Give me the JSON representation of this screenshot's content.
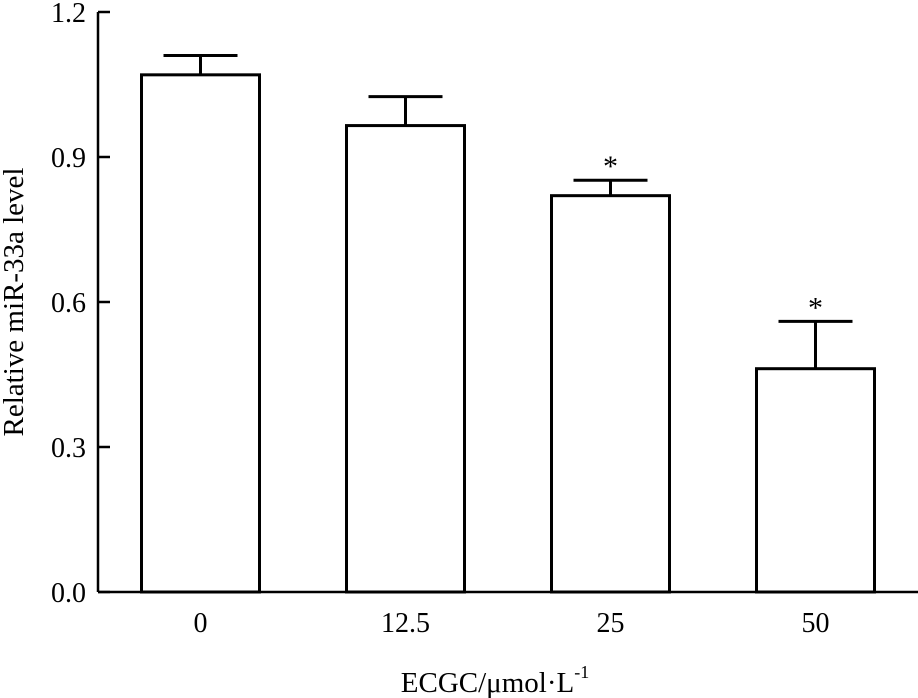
{
  "chart_data": {
    "type": "bar",
    "categories": [
      "0",
      "12.5",
      "25",
      "50"
    ],
    "values": [
      1.07,
      0.965,
      0.82,
      0.462
    ],
    "error_upper": [
      1.11,
      1.025,
      0.852,
      0.56
    ],
    "significance": [
      "",
      "",
      "*",
      "*"
    ],
    "xlabel": "ECGC/μmol·L",
    "xlabel_superscript": "-1",
    "ylabel": "Relative miR-33a level",
    "ylim": [
      0,
      1.2
    ],
    "yticks": [
      "0.0",
      "0.3",
      "0.6",
      "0.9",
      "1.2"
    ],
    "grid": false,
    "legend": "none"
  }
}
